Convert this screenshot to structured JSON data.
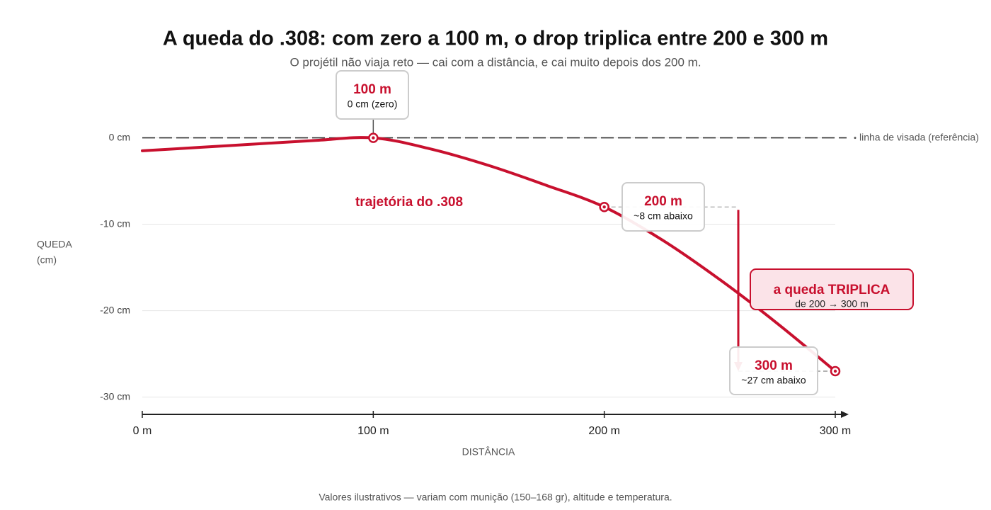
{
  "chart_data": {
    "type": "line",
    "title": "A queda do .308: com zero a 100 m, o drop triplica entre 200 e 300 m",
    "subtitle": "O projétil não viaja reto — cai com a distância, e cai muito depois dos 200 m.",
    "x_label": "DISTÂNCIA",
    "y_label": [
      "QUEDA",
      "(cm)"
    ],
    "note": "Valores ilustrativos — variam com munição (150–168 gr), altitude e temperatura.",
    "x": [
      0,
      25,
      50,
      75,
      100,
      125,
      150,
      175,
      200,
      225,
      250,
      275,
      300
    ],
    "series": [
      {
        "name": "trajetória do .308",
        "color": "#c8102e",
        "values": [
          -1.5,
          -1.1,
          -0.7,
          -0.3,
          0,
          -1.3,
          -3.2,
          -5.5,
          -8,
          -11.8,
          -16.4,
          -21.5,
          -27
        ]
      }
    ],
    "xlim": [
      0,
      300
    ],
    "ylim": [
      -32,
      7
    ],
    "xticks": [
      {
        "value": 0,
        "label": "0 m"
      },
      {
        "value": 100,
        "label": "100 m"
      },
      {
        "value": 200,
        "label": "200 m"
      },
      {
        "value": 300,
        "label": "300 m"
      }
    ],
    "yticks": [
      {
        "value": 0,
        "label": "0 cm"
      },
      {
        "value": -10,
        "label": "-10 cm"
      },
      {
        "value": -20,
        "label": "-20 cm"
      },
      {
        "value": -30,
        "label": "-30 cm"
      }
    ],
    "grid": true,
    "reference": {
      "value": 0,
      "label": "linha de visada (referência)"
    },
    "highlights": [
      {
        "x": 100,
        "y": 0,
        "label": "100 m",
        "note": "0 cm (zero)"
      },
      {
        "x": 200,
        "y": -8,
        "label": "200 m",
        "note": "~8 cm abaixo"
      },
      {
        "x": 300,
        "y": -27,
        "label": "300 m",
        "note": "~27 cm abaixo"
      }
    ],
    "callout": {
      "title": "a queda TRIPLICA",
      "text": "de 200 → 300 m"
    }
  }
}
